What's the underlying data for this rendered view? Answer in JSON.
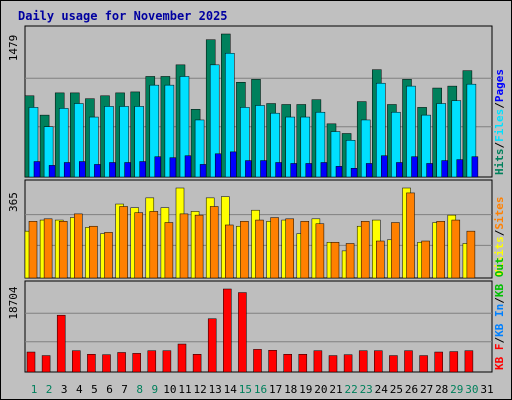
{
  "title": "Daily usage for November 2025",
  "colors": {
    "frame_bg": "#c0c0c0",
    "plot_bg": "#bebebe",
    "title": "#0000a0",
    "hits": "#00805c",
    "files": "#00e0ff",
    "pages": "#0000ff",
    "visits": "#ffff00",
    "sites": "#ff8000",
    "kbin": "#0080ff",
    "kbout": "#00c000",
    "kbf": "#ff0000",
    "kb_bar": "#ff0000",
    "weekend_day": "#00805c",
    "weekday_day": "#000000"
  },
  "chart_data": [
    {
      "type": "bar",
      "panel": "top",
      "y_tick_label": "1479",
      "ylim": [
        0,
        1479
      ],
      "grid": true,
      "legend": [
        {
          "label": "Hits",
          "color": "#00805c"
        },
        {
          "label": "Files",
          "color": "#00e0ff"
        },
        {
          "label": "Pages",
          "color": "#0000ff"
        }
      ],
      "categories": [
        "1",
        "2",
        "3",
        "4",
        "5",
        "6",
        "7",
        "8",
        "9",
        "10",
        "11",
        "12",
        "13",
        "14",
        "15",
        "16",
        "17",
        "18",
        "19",
        "20",
        "21",
        "22",
        "23",
        "24",
        "25",
        "26",
        "27",
        "28",
        "29",
        "30",
        "31"
      ],
      "series": [
        {
          "name": "Hits",
          "values": [
            840,
            640,
            870,
            870,
            810,
            840,
            870,
            880,
            1040,
            1040,
            1160,
            700,
            1420,
            1479,
            980,
            1010,
            760,
            750,
            750,
            800,
            550,
            450,
            780,
            1110,
            750,
            1010,
            720,
            920,
            940,
            1100,
            0
          ]
        },
        {
          "name": "Files",
          "values": [
            720,
            520,
            710,
            760,
            620,
            730,
            730,
            730,
            950,
            950,
            1040,
            590,
            1160,
            1280,
            720,
            740,
            660,
            620,
            620,
            670,
            470,
            380,
            590,
            970,
            670,
            940,
            640,
            760,
            790,
            960,
            0
          ]
        },
        {
          "name": "Pages",
          "values": [
            160,
            120,
            150,
            160,
            130,
            150,
            150,
            160,
            210,
            200,
            220,
            130,
            240,
            260,
            170,
            170,
            150,
            140,
            140,
            150,
            110,
            90,
            140,
            220,
            150,
            210,
            140,
            170,
            180,
            210,
            0
          ]
        }
      ]
    },
    {
      "type": "bar",
      "panel": "middle",
      "y_tick_label": "365",
      "ylim": [
        0,
        365
      ],
      "grid": true,
      "legend": [
        {
          "label": "Visits",
          "color": "#ffff00"
        },
        {
          "label": "Sites",
          "color": "#ff8000"
        }
      ],
      "categories": [
        "1",
        "2",
        "3",
        "4",
        "5",
        "6",
        "7",
        "8",
        "9",
        "10",
        "11",
        "12",
        "13",
        "14",
        "15",
        "16",
        "17",
        "18",
        "19",
        "20",
        "21",
        "22",
        "23",
        "24",
        "25",
        "26",
        "27",
        "28",
        "29",
        "30",
        "31"
      ],
      "series": [
        {
          "name": "Visits",
          "values": [
            190,
            235,
            235,
            245,
            205,
            180,
            300,
            285,
            325,
            285,
            365,
            270,
            325,
            330,
            210,
            275,
            230,
            235,
            180,
            240,
            145,
            110,
            210,
            235,
            155,
            365,
            145,
            225,
            255,
            140,
            0
          ]
        },
        {
          "name": "Sites",
          "values": [
            230,
            240,
            230,
            260,
            210,
            185,
            290,
            265,
            270,
            225,
            260,
            255,
            290,
            215,
            230,
            235,
            245,
            240,
            230,
            220,
            145,
            140,
            230,
            150,
            225,
            345,
            150,
            230,
            235,
            190,
            0
          ]
        }
      ]
    },
    {
      "type": "bar",
      "panel": "bottom",
      "y_tick_label": "18704",
      "ylim": [
        0,
        18704
      ],
      "grid": true,
      "legend": [
        {
          "label": "KB F",
          "color": "#ff0000"
        },
        {
          "label": "KB In",
          "color": "#0080ff"
        },
        {
          "label": "KB Out",
          "color": "#00c000"
        }
      ],
      "categories": [
        "1",
        "2",
        "3",
        "4",
        "5",
        "6",
        "7",
        "8",
        "9",
        "10",
        "11",
        "12",
        "13",
        "14",
        "15",
        "16",
        "17",
        "18",
        "19",
        "20",
        "21",
        "22",
        "23",
        "24",
        "25",
        "26",
        "27",
        "28",
        "29",
        "30",
        "31"
      ],
      "series": [
        {
          "name": "KB F",
          "values": [
            4500,
            3700,
            12800,
            4800,
            4000,
            3900,
            4400,
            4200,
            4800,
            4800,
            6300,
            4000,
            12000,
            18704,
            17900,
            5100,
            4900,
            4000,
            4000,
            4800,
            3700,
            3900,
            4800,
            4800,
            3700,
            4800,
            3700,
            4500,
            4600,
            4800,
            0
          ]
        }
      ]
    }
  ],
  "day_labels": [
    {
      "label": "1",
      "weekend": true
    },
    {
      "label": "2",
      "weekend": true
    },
    {
      "label": "3",
      "weekend": false
    },
    {
      "label": "4",
      "weekend": false
    },
    {
      "label": "5",
      "weekend": false
    },
    {
      "label": "6",
      "weekend": false
    },
    {
      "label": "7",
      "weekend": false
    },
    {
      "label": "8",
      "weekend": true
    },
    {
      "label": "9",
      "weekend": true
    },
    {
      "label": "10",
      "weekend": false
    },
    {
      "label": "11",
      "weekend": false
    },
    {
      "label": "12",
      "weekend": false
    },
    {
      "label": "13",
      "weekend": false
    },
    {
      "label": "14",
      "weekend": false
    },
    {
      "label": "15",
      "weekend": true
    },
    {
      "label": "16",
      "weekend": true
    },
    {
      "label": "17",
      "weekend": false
    },
    {
      "label": "18",
      "weekend": false
    },
    {
      "label": "19",
      "weekend": false
    },
    {
      "label": "20",
      "weekend": false
    },
    {
      "label": "21",
      "weekend": false
    },
    {
      "label": "22",
      "weekend": true
    },
    {
      "label": "23",
      "weekend": true
    },
    {
      "label": "24",
      "weekend": false
    },
    {
      "label": "25",
      "weekend": false
    },
    {
      "label": "26",
      "weekend": false
    },
    {
      "label": "27",
      "weekend": false
    },
    {
      "label": "28",
      "weekend": false
    },
    {
      "label": "29",
      "weekend": true
    },
    {
      "label": "30",
      "weekend": true
    },
    {
      "label": "31",
      "weekend": false
    }
  ]
}
